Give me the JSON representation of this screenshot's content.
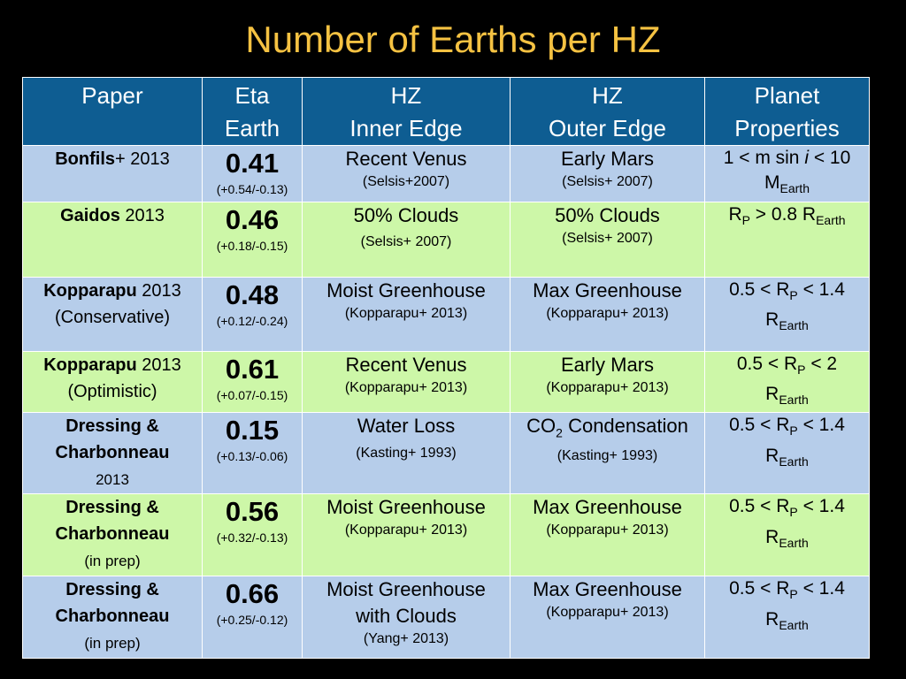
{
  "title": "Number of Earths per HZ",
  "headers": {
    "paper": "Paper",
    "eta_1": "Eta",
    "eta_2": "Earth",
    "inner_1": "HZ",
    "inner_2": "Inner Edge",
    "outer_1": "HZ",
    "outer_2": "Outer Edge",
    "props_1": "Planet",
    "props_2": "Properties"
  },
  "rows": [
    {
      "author": "Bonfils",
      "author_suffix": "+ 2013",
      "paper_line2": "",
      "eta": "0.41",
      "eta_err": "(+0.54/-0.13)",
      "inner": "Recent Venus",
      "inner_2": "",
      "inner_ref": "(Selsis+2007)",
      "outer": "Early Mars",
      "outer_ref": "(Selsis+ 2007)",
      "prop_a": "1 < m sin ",
      "prop_i": "i",
      "prop_b": " < 10",
      "prop_c": "M",
      "prop_sub": "Earth"
    },
    {
      "author": "Gaidos",
      "author_suffix": " 2013",
      "eta": "0.46",
      "eta_err": "(+0.18/-0.15)",
      "inner": "50% Clouds",
      "inner_ref": "(Selsis+ 2007)",
      "outer": "50% Clouds",
      "outer_ref": "(Selsis+ 2007)",
      "prop_a": "R",
      "prop_sub1": "P",
      "prop_b": " > 0.8 R",
      "prop_sub2": "Earth"
    },
    {
      "author": "Kopparapu",
      "author_suffix": " 2013",
      "paper_line2": "(Conservative)",
      "eta": "0.48",
      "eta_err": "(+0.12/-0.24)",
      "inner": "Moist Greenhouse",
      "inner_ref": "(Kopparapu+ 2013)",
      "outer": "Max Greenhouse",
      "outer_ref": "(Kopparapu+ 2013)",
      "prop_a": "0.5 < R",
      "prop_sub1": "P",
      "prop_b": " < 1.4",
      "prop_c": "R",
      "prop_sub2": "Earth"
    },
    {
      "author": "Kopparapu",
      "author_suffix": " 2013",
      "paper_line2": "(Optimistic)",
      "eta": "0.61",
      "eta_err": "(+0.07/-0.15)",
      "inner": "Recent Venus",
      "inner_ref": "(Kopparapu+ 2013)",
      "outer": "Early Mars",
      "outer_ref": "(Kopparapu+ 2013)",
      "prop_a": "0.5 < R",
      "prop_sub1": "P",
      "prop_b": " < 2",
      "prop_c": "R",
      "prop_sub2": "Earth"
    },
    {
      "author_1": "Dressing &",
      "author_2": "Charbonneau",
      "paper_line3": "2013",
      "eta": "0.15",
      "eta_err": "(+0.13/-0.06)",
      "inner": "Water Loss",
      "inner_ref": "(Kasting+ 1993)",
      "outer_a": "CO",
      "outer_sub": "2",
      "outer_b": " Condensation",
      "outer_ref": "(Kasting+ 1993)",
      "prop_a": "0.5 < R",
      "prop_sub1": "P",
      "prop_b": " < 1.4",
      "prop_c": "R",
      "prop_sub2": "Earth"
    },
    {
      "author_1": "Dressing &",
      "author_2": "Charbonneau",
      "paper_line3": "(in prep)",
      "eta": "0.56",
      "eta_err": "(+0.32/-0.13)",
      "inner": "Moist Greenhouse",
      "inner_ref": "(Kopparapu+ 2013)",
      "outer": "Max Greenhouse",
      "outer_ref": "(Kopparapu+ 2013)",
      "prop_a": "0.5 < R",
      "prop_sub1": "P",
      "prop_b": " < 1.4",
      "prop_c": "R",
      "prop_sub2": "Earth"
    },
    {
      "author_1": "Dressing &",
      "author_2": "Charbonneau",
      "paper_line3": "(in prep)",
      "eta": "0.66",
      "eta_err": "(+0.25/-0.12)",
      "inner": "Moist Greenhouse",
      "inner_2": "with Clouds",
      "inner_ref": "(Yang+ 2013)",
      "outer": "Max Greenhouse",
      "outer_ref": "(Kopparapu+ 2013)",
      "prop_a": "0.5 < R",
      "prop_sub1": "P",
      "prop_b": " < 1.4",
      "prop_c": "R",
      "prop_sub2": "Earth"
    }
  ],
  "colors": {
    "title": "#F5C242",
    "header_bg": "#0E5D92",
    "row_blue": "#B6CDEA",
    "row_green": "#CDF7A8",
    "background": "#000000"
  }
}
